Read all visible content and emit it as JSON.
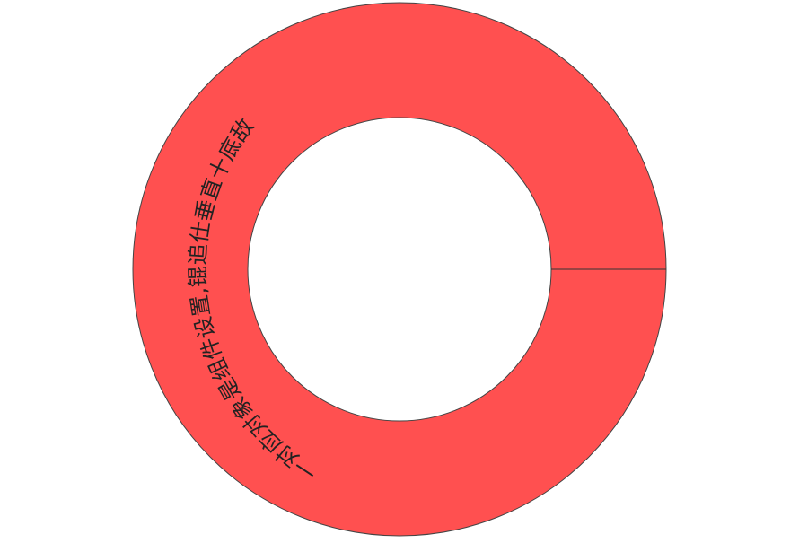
{
  "chart_data": {
    "type": "pie",
    "donut": true,
    "series": [
      {
        "values": [
          100
        ],
        "color": "#ff5050"
      }
    ],
    "label_text": "一对应对象是组件设置,锟追仕垂直十底敌"
  }
}
